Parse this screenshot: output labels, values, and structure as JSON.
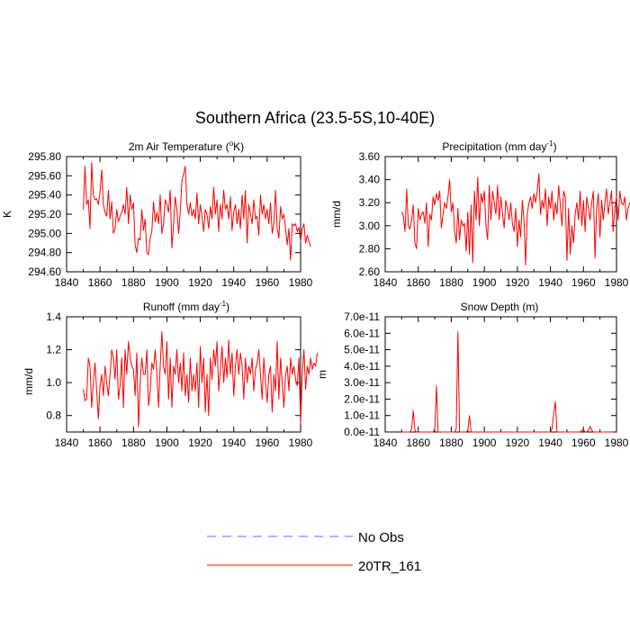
{
  "figure": {
    "title": "Southern Africa (23.5-5S,10-40E)"
  },
  "legend": {
    "position": "bottom-center",
    "entries": [
      {
        "label": "No Obs",
        "color": "#6666ff",
        "style": "dashed"
      },
      {
        "label": "20TR_161",
        "color": "#ff0000",
        "style": "solid"
      }
    ]
  },
  "chart_data": [
    {
      "type": "line",
      "title_main": "2m Air Temperature (",
      "title_sup": "o",
      "title_tail": "K)",
      "ylabel": "K",
      "xlim": [
        1840,
        1980
      ],
      "ylim": [
        294.6,
        295.8
      ],
      "xticks": [
        1840,
        1860,
        1880,
        1900,
        1920,
        1940,
        1960,
        1980
      ],
      "xtick_labels": [
        "1840",
        "1860",
        "1880",
        "1900",
        "1920",
        "1940",
        "1960",
        "1980"
      ],
      "yticks": [
        294.6,
        294.8,
        295.0,
        295.2,
        295.4,
        295.6,
        295.8
      ],
      "ytick_labels": [
        "294.60",
        "294.80",
        "295.00",
        "295.20",
        "295.40",
        "295.60",
        "295.80"
      ],
      "series": [
        {
          "color": "#ff0000",
          "x_start": 1850,
          "x_step": 1,
          "values": [
            295.25,
            295.7,
            295.3,
            295.35,
            295.05,
            295.74,
            295.4,
            295.35,
            295.36,
            295.3,
            295.43,
            295.66,
            295.3,
            295.22,
            295.18,
            295.45,
            295.15,
            295.33,
            295.0,
            295.05,
            295.25,
            295.12,
            295.18,
            295.22,
            295.3,
            295.2,
            295.48,
            295.1,
            295.4,
            295.25,
            295.32,
            294.88,
            294.8,
            294.95,
            294.93,
            295.25,
            295.03,
            295.15,
            294.8,
            294.78,
            294.95,
            295.02,
            295.33,
            295.12,
            295.22,
            295.1,
            295.4,
            295.0,
            295.1,
            295.35,
            295.3,
            295.22,
            295.45,
            294.85,
            295.1,
            295.38,
            295.25,
            295.0,
            295.23,
            295.55,
            295.62,
            295.7,
            295.3,
            295.2,
            295.32,
            295.18,
            295.25,
            295.15,
            295.42,
            295.1,
            295.3,
            295.18,
            295.02,
            295.25,
            295.2,
            295.05,
            295.28,
            295.15,
            295.48,
            295.2,
            295.35,
            295.02,
            295.3,
            295.15,
            295.45,
            295.25,
            295.3,
            295.15,
            295.38,
            295.03,
            295.22,
            295.3,
            295.1,
            295.25,
            295.05,
            295.4,
            295.15,
            295.45,
            294.9,
            295.3,
            295.2,
            295.1,
            295.35,
            295.15,
            295.18,
            294.98,
            295.4,
            295.2,
            295.3,
            295.15,
            295.25,
            295.1,
            295.32,
            295.0,
            295.1,
            295.45,
            295.05,
            294.95,
            295.28,
            295.15,
            295.2,
            295.05,
            294.88,
            295.05,
            294.72,
            295.1,
            295.08,
            295.1,
            295.02,
            295.06,
            294.92,
            295.05,
            295.1,
            294.9,
            294.98,
            294.92,
            294.86
          ]
        }
      ]
    },
    {
      "type": "line",
      "title_main": "Precipitation (mm day",
      "title_sup": "-1",
      "title_tail": ")",
      "ylabel": "mm/d",
      "xlim": [
        1840,
        1980
      ],
      "ylim": [
        2.6,
        3.6
      ],
      "xticks": [
        1840,
        1860,
        1880,
        1900,
        1920,
        1940,
        1960,
        1980
      ],
      "xtick_labels": [
        "1840",
        "1860",
        "1880",
        "1900",
        "1920",
        "1940",
        "1960",
        "1980"
      ],
      "yticks": [
        2.6,
        2.8,
        3.0,
        3.2,
        3.4,
        3.6
      ],
      "ytick_labels": [
        "2.60",
        "2.80",
        "3.00",
        "3.20",
        "3.40",
        "3.60"
      ],
      "series": [
        {
          "color": "#ff0000",
          "x_start": 1850,
          "x_step": 1,
          "values": [
            3.12,
            3.08,
            2.95,
            3.32,
            3.0,
            2.97,
            3.05,
            3.18,
            2.85,
            2.8,
            3.15,
            3.05,
            3.1,
            3.12,
            3.02,
            3.2,
            2.82,
            3.1,
            3.05,
            3.25,
            3.18,
            3.28,
            3.22,
            3.3,
            2.98,
            3.1,
            3.2,
            3.15,
            3.25,
            3.4,
            3.12,
            3.2,
            2.95,
            2.85,
            3.15,
            2.88,
            3.05,
            3.0,
            3.02,
            2.78,
            3.12,
            2.75,
            3.18,
            2.68,
            3.3,
            3.05,
            3.42,
            3.0,
            3.28,
            3.2,
            3.3,
            3.0,
            2.88,
            3.35,
            3.05,
            3.3,
            3.2,
            3.1,
            3.35,
            3.05,
            3.25,
            3.1,
            2.98,
            3.22,
            3.15,
            3.05,
            3.2,
            3.02,
            2.95,
            3.15,
            2.82,
            3.05,
            2.9,
            3.22,
            3.05,
            2.66,
            3.1,
            3.2,
            3.25,
            3.15,
            3.28,
            3.2,
            3.3,
            3.45,
            3.1,
            3.22,
            3.15,
            3.32,
            3.0,
            3.25,
            3.15,
            3.3,
            3.05,
            3.2,
            3.1,
            3.35,
            3.18,
            3.0,
            3.3,
            3.25,
            2.7,
            3.15,
            2.75,
            3.0,
            2.85,
            3.1,
            3.2,
            3.05,
            3.3,
            3.0,
            3.22,
            2.95,
            3.25,
            3.15,
            3.05,
            3.2,
            3.3,
            2.72,
            3.15,
            3.28,
            2.9,
            3.22,
            3.05,
            3.2,
            3.32,
            3.1,
            3.2,
            3.3,
            2.95,
            3.15,
            3.25,
            3.05,
            3.3,
            3.2,
            3.18,
            3.25,
            3.05,
            3.15,
            3.2
          ]
        }
      ]
    },
    {
      "type": "line",
      "title_main": "Runoff (mm day",
      "title_sup": "-1",
      "title_tail": ")",
      "ylabel": "mm/d",
      "xlim": [
        1840,
        1980
      ],
      "ylim": [
        0.7,
        1.4
      ],
      "xticks": [
        1840,
        1860,
        1880,
        1900,
        1920,
        1940,
        1960,
        1980
      ],
      "xtick_labels": [
        "1840",
        "1860",
        "1880",
        "1900",
        "1920",
        "1940",
        "1960",
        "1980"
      ],
      "yticks": [
        0.8,
        1.0,
        1.2,
        1.4
      ],
      "ytick_labels": [
        "0.8",
        "1.0",
        "1.2",
        "1.4"
      ],
      "series": [
        {
          "color": "#ff0000",
          "x_start": 1850,
          "x_step": 1,
          "values": [
            0.96,
            0.89,
            0.9,
            1.15,
            1.1,
            0.85,
            1.0,
            1.12,
            0.95,
            0.78,
            0.98,
            1.05,
            0.92,
            1.1,
            1.0,
            0.92,
            1.05,
            1.2,
            1.15,
            1.02,
            1.2,
            0.9,
            0.98,
            1.15,
            0.85,
            1.2,
            1.05,
            1.25,
            1.15,
            1.1,
            1.08,
            0.92,
            1.18,
            0.73,
            1.0,
            1.15,
            1.05,
            1.05,
            1.2,
            0.86,
            0.95,
            1.12,
            1.08,
            1.2,
            1.05,
            0.85,
            1.1,
            1.31,
            1.1,
            1.05,
            1.25,
            0.9,
            1.15,
            0.85,
            1.1,
            1.05,
            1.2,
            1.0,
            1.12,
            0.95,
            1.18,
            0.92,
            1.05,
            0.88,
            1.15,
            0.95,
            1.05,
            0.95,
            1.12,
            0.85,
            1.22,
            1.0,
            1.15,
            0.82,
            1.05,
            0.8,
            1.15,
            1.02,
            1.2,
            1.1,
            1.25,
            0.95,
            1.08,
            1.22,
            1.0,
            1.15,
            1.03,
            1.26,
            1.05,
            1.18,
            0.92,
            1.1,
            1.2,
            1.05,
            1.18,
            1.1,
            0.9,
            1.15,
            1.0,
            1.1,
            1.05,
            1.15,
            0.95,
            1.08,
            1.12,
            1.2,
            1.05,
            0.9,
            1.15,
            1.0,
            0.88,
            1.05,
            1.1,
            0.82,
            1.05,
            0.95,
            1.25,
            0.9,
            1.15,
            1.0,
            0.85,
            1.05,
            1.1,
            0.95,
            1.15,
            1.05,
            1.1,
            1.02,
            0.98,
            1.15,
            0.75,
            1.05,
            1.2,
            0.96,
            1.1,
            1.05,
            1.15,
            1.08,
            1.12,
            1.1,
            1.18
          ]
        }
      ]
    },
    {
      "type": "line",
      "title_main": "Snow Depth (m)",
      "title_sup": "",
      "title_tail": "",
      "ylabel": "m",
      "xlim": [
        1840,
        1980
      ],
      "ylim": [
        0,
        7e-11
      ],
      "xticks": [
        1840,
        1860,
        1880,
        1900,
        1920,
        1940,
        1960,
        1980
      ],
      "xtick_labels": [
        "1840",
        "1860",
        "1880",
        "1900",
        "1920",
        "1940",
        "1960",
        "1980"
      ],
      "yticks": [
        0,
        1e-11,
        2e-11,
        3e-11,
        4e-11,
        5e-11,
        6e-11,
        7e-11
      ],
      "ytick_labels": [
        "0.0e-11",
        "1.0e-11",
        "2.0e-11",
        "3.0e-11",
        "4.0e-11",
        "5.0e-11",
        "6.0e-11",
        "7.0e-11"
      ],
      "series": [
        {
          "color": "#ff0000",
          "x": [
            1850,
            1855,
            1856,
            1857,
            1858,
            1859,
            1869,
            1870,
            1871,
            1872,
            1882,
            1883,
            1884,
            1885,
            1889,
            1890,
            1891,
            1892,
            1940,
            1941,
            1942,
            1943,
            1944,
            1958,
            1959,
            1960,
            1961,
            1962,
            1963,
            1964,
            1965,
            1966,
            1978
          ],
          "values": [
            0,
            0,
            2e-12,
            1.3e-11,
            1e-12,
            0,
            0,
            2e-12,
            2.8e-11,
            0,
            0,
            2e-12,
            6.1e-11,
            0,
            0,
            1e-12,
            1e-11,
            0,
            0,
            2e-12,
            1.1e-11,
            1.85e-11,
            0,
            0,
            1e-12,
            1.5e-12,
            0,
            0,
            1e-12,
            3.5e-12,
            1e-12,
            0,
            0
          ]
        }
      ]
    }
  ]
}
